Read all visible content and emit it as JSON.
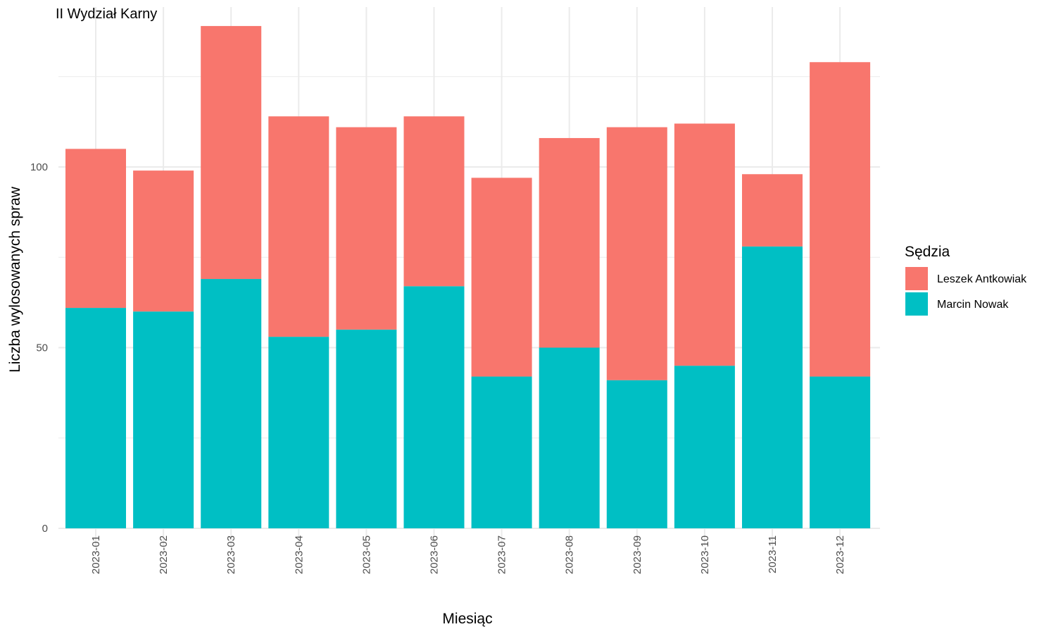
{
  "chart_data": {
    "type": "bar",
    "stacked": true,
    "title": "II Wydział Karny",
    "xlabel": "Miesiąc",
    "ylabel": "Liczba wylosowanych spraw",
    "categories": [
      "2023-01",
      "2023-02",
      "2023-03",
      "2023-04",
      "2023-05",
      "2023-06",
      "2023-07",
      "2023-08",
      "2023-09",
      "2023-10",
      "2023-11",
      "2023-12"
    ],
    "series": [
      {
        "name": "Marcin Nowak",
        "color": "#00BFC4",
        "values": [
          61,
          60,
          69,
          53,
          55,
          67,
          42,
          50,
          41,
          45,
          78,
          42
        ]
      },
      {
        "name": "Leszek Antkowiak",
        "color": "#F8766D",
        "values": [
          44,
          39,
          70,
          61,
          56,
          47,
          55,
          58,
          70,
          67,
          20,
          87
        ]
      }
    ],
    "ylim": [
      0,
      145
    ],
    "yticks": [
      0,
      50,
      100
    ],
    "grid": true,
    "legend": {
      "title": "Sędzia",
      "position": "right",
      "entries": [
        {
          "label": "Leszek Antkowiak",
          "color": "#F8766D"
        },
        {
          "label": "Marcin Nowak",
          "color": "#00BFC4"
        }
      ]
    }
  }
}
